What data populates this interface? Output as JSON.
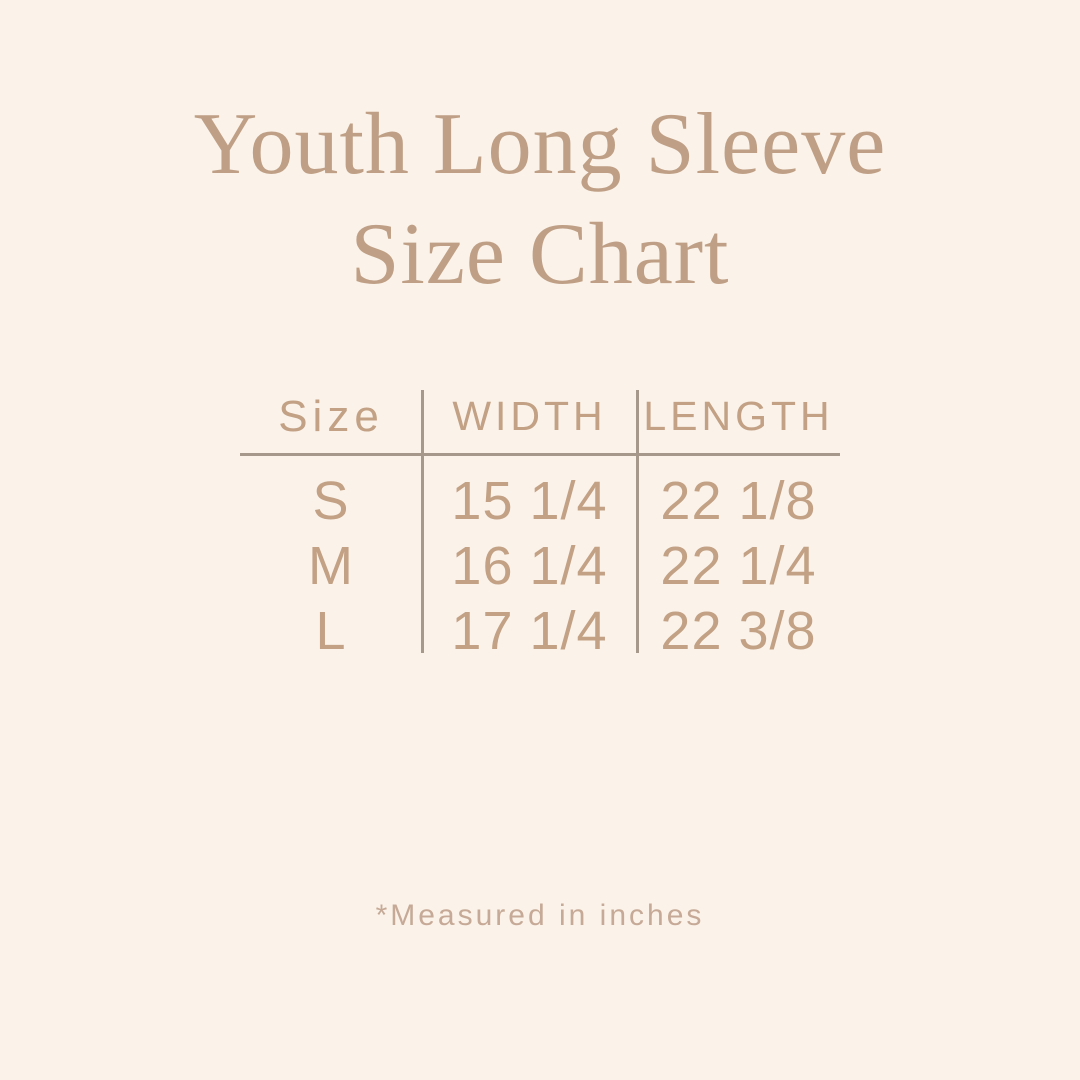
{
  "page": {
    "background_color": "#fbf2e9",
    "accent_color": "#bfa086",
    "line_color": "#a6988b"
  },
  "title": {
    "line1": "Youth Long Sleeve",
    "line2": "Size Chart"
  },
  "chart_data": {
    "type": "table",
    "title": "Youth Long Sleeve Size Chart",
    "columns": [
      "Size",
      "WIDTH",
      "LENGTH"
    ],
    "rows": [
      [
        "S",
        "15 1/4",
        "22 1/8"
      ],
      [
        "M",
        "16 1/4",
        "22 1/4"
      ],
      [
        "L",
        "17 1/4",
        "22 3/8"
      ]
    ],
    "units": "inches",
    "footnote": "*Measured in inches"
  },
  "footnote": {
    "text": "*Measured in inches"
  }
}
